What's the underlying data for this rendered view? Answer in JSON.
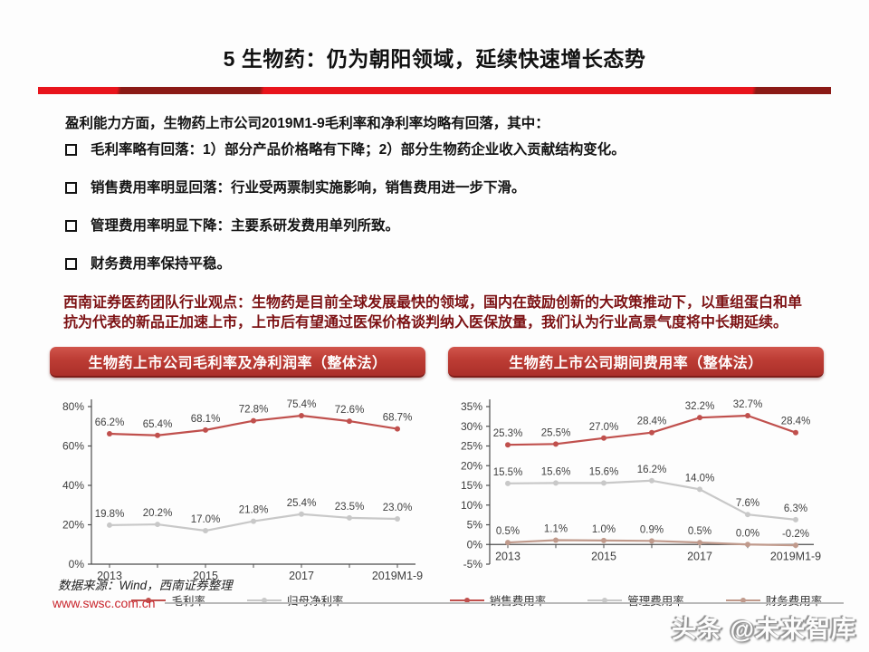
{
  "header": {
    "title": "5 生物药：仍为朝阳领域，延续快速增长态势"
  },
  "accent": {
    "bright_red": "#e8141c",
    "dark_red": "#8b1a16",
    "banner_red": "#b73832"
  },
  "intro": "盈利能力方面，生物药上市公司2019M1-9毛利率和净利率均略有回落，其中：",
  "bullets": [
    "毛利率略有回落：1）部分产品价格略有下降；2）部分生物药企业收入贡献结构变化。",
    "销售费用率明显回落：行业受两票制实施影响，销售费用进一步下滑。",
    "管理费用率明显下降：主要系研发费用单列所致。",
    "财务费用率保持平稳。"
  ],
  "opinion": "西南证券医药团队行业观点：生物药是目前全球发展最快的领域，国内在鼓励创新的大政策推动下，以重组蛋白和单抗为代表的新品正加速上市，上市后有望通过医保价格谈判纳入医保放量，我们认为行业高景气度将中长期延续。",
  "chart_data": [
    {
      "type": "line",
      "title": "生物药上市公司毛利率及净利润率（整体法）",
      "categories": [
        "2013",
        "2014",
        "2015",
        "2016",
        "2017",
        "2018",
        "2019M1-9"
      ],
      "x_label_indices": [
        0,
        2,
        4,
        6
      ],
      "ylim": [
        0,
        80
      ],
      "yticks": [
        0,
        20,
        40,
        60,
        80
      ],
      "grid": false,
      "legend_position": "bottom",
      "series": [
        {
          "name": "毛利率",
          "color": "#c0504d",
          "values": [
            66.2,
            65.4,
            68.1,
            72.8,
            75.4,
            72.6,
            68.7
          ]
        },
        {
          "name": "归母净利率",
          "color": "#c8c8c8",
          "values": [
            19.8,
            20.2,
            17.0,
            21.8,
            25.4,
            23.5,
            23.0
          ]
        }
      ]
    },
    {
      "type": "line",
      "title": "生物药上市公司期间费用率（整体法）",
      "categories": [
        "2013",
        "2014",
        "2015",
        "2016",
        "2017",
        "2018",
        "2019M1-9"
      ],
      "x_label_indices": [
        0,
        2,
        4,
        6
      ],
      "ylim": [
        -5,
        35
      ],
      "yticks": [
        -5,
        0,
        5,
        10,
        15,
        20,
        25,
        30,
        35
      ],
      "grid": false,
      "legend_position": "bottom",
      "series": [
        {
          "name": "销售费用率",
          "color": "#c0504d",
          "values": [
            25.3,
            25.5,
            27.0,
            28.4,
            32.2,
            32.7,
            28.4
          ]
        },
        {
          "name": "管理费用率",
          "color": "#c8c8c8",
          "values": [
            15.5,
            15.6,
            15.6,
            16.2,
            14.0,
            7.6,
            6.3
          ]
        },
        {
          "name": "财务费用率",
          "color": "#c09a8c",
          "values": [
            0.5,
            1.1,
            1.0,
            0.9,
            0.5,
            0.0,
            -0.2
          ]
        }
      ]
    }
  ],
  "footer": {
    "source": "数据来源：Wind，西南证券整理",
    "website": "www.swsc.com.cn"
  },
  "watermark": "头条 @未来智库"
}
